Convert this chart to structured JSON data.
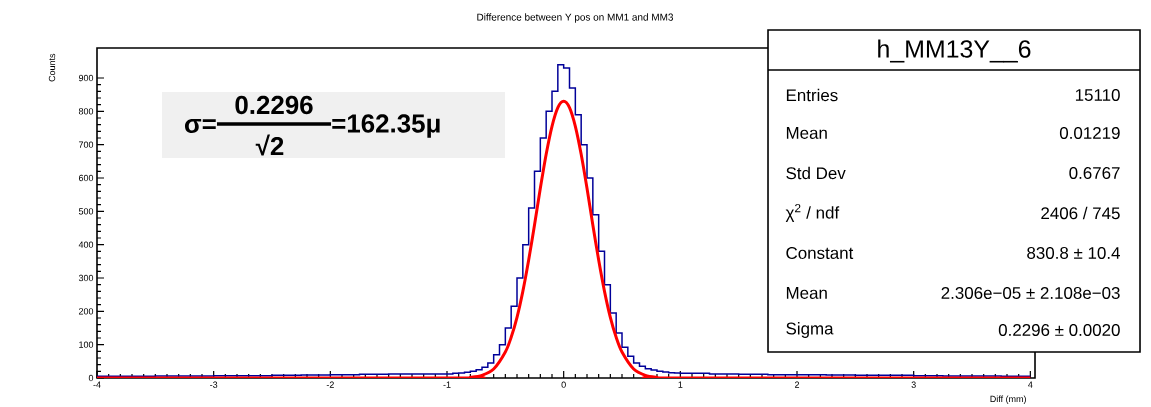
{
  "chart_data": {
    "type": "histogram",
    "title": "Difference between Y pos on MM1 and MM3",
    "xlabel": "Diff (mm)",
    "ylabel": "Counts",
    "xlim": [
      -4,
      4.04
    ],
    "ylim": [
      0,
      990
    ],
    "xticks": [
      -4,
      -3,
      -2,
      -1,
      0,
      1,
      2,
      3,
      4
    ],
    "yticks": [
      0,
      100,
      200,
      300,
      400,
      500,
      600,
      700,
      800,
      900
    ],
    "series": [
      {
        "color": "#000099",
        "bins": [
          -4,
          -3.75,
          -3.5,
          -3.25,
          -3,
          -2.75,
          -2.5,
          -2.25,
          -2,
          -1.75,
          -1.5,
          -1.25,
          -1,
          -0.95,
          -0.9,
          -0.85,
          -0.8,
          -0.75,
          -0.7,
          -0.65,
          -0.6,
          -0.55,
          -0.5,
          -0.45,
          -0.4,
          -0.35,
          -0.3,
          -0.25,
          -0.2,
          -0.15,
          -0.1,
          -0.05,
          0,
          0.05,
          0.1,
          0.15,
          0.2,
          0.25,
          0.3,
          0.35,
          0.4,
          0.45,
          0.5,
          0.55,
          0.6,
          0.65,
          0.7,
          0.75,
          0.8,
          0.85,
          0.9,
          0.95,
          1,
          1.25,
          1.5,
          1.75,
          2,
          2.25,
          2.5,
          2.75,
          3,
          3.25,
          3.5,
          3.75,
          4
        ],
        "values": [
          5,
          5,
          6,
          6,
          7,
          7,
          8,
          9,
          10,
          11,
          12,
          12,
          12,
          14,
          15,
          17,
          20,
          25,
          32,
          45,
          70,
          100,
          150,
          215,
          300,
          400,
          510,
          620,
          720,
          800,
          860,
          940,
          930,
          870,
          790,
          700,
          600,
          490,
          380,
          280,
          195,
          135,
          92,
          65,
          45,
          35,
          28,
          24,
          20,
          18,
          16,
          15,
          14,
          12,
          11,
          10,
          10,
          9,
          8,
          8,
          7,
          6,
          6,
          5
        ]
      },
      {
        "type": "line",
        "color": "#ff0000",
        "x": [
          -4,
          -0.9,
          -0.8,
          -0.7,
          -0.6,
          -0.5,
          -0.45,
          -0.4,
          -0.35,
          -0.3,
          -0.25,
          -0.2,
          -0.15,
          -0.1,
          -0.05,
          0,
          0.05,
          0.1,
          0.15,
          0.2,
          0.25,
          0.3,
          0.35,
          0.4,
          0.45,
          0.5,
          0.6,
          0.7,
          0.8,
          0.9,
          4
        ],
        "values": [
          0,
          0,
          2,
          8,
          27,
          78,
          122,
          182,
          260,
          354,
          459,
          569,
          671,
          755,
          811,
          830,
          811,
          755,
          671,
          569,
          459,
          354,
          260,
          182,
          122,
          78,
          27,
          8,
          2,
          0,
          0
        ]
      }
    ],
    "annotations": [
      "σ=",
      "0.2296",
      "√2",
      "=162.35μ",
      "h_MM13Y__6",
      "Entries",
      "15110",
      "Mean",
      "0.01219",
      "Std Dev",
      "0.6767",
      "χ$^{2}$ / ndf",
      "2406 / 745",
      "Constant",
      "830.8 ± 10.4",
      "Mean",
      "2.306e−05 ± 2.108e−03",
      "Sigma",
      "0.2296 ± 0.0020"
    ]
  }
}
